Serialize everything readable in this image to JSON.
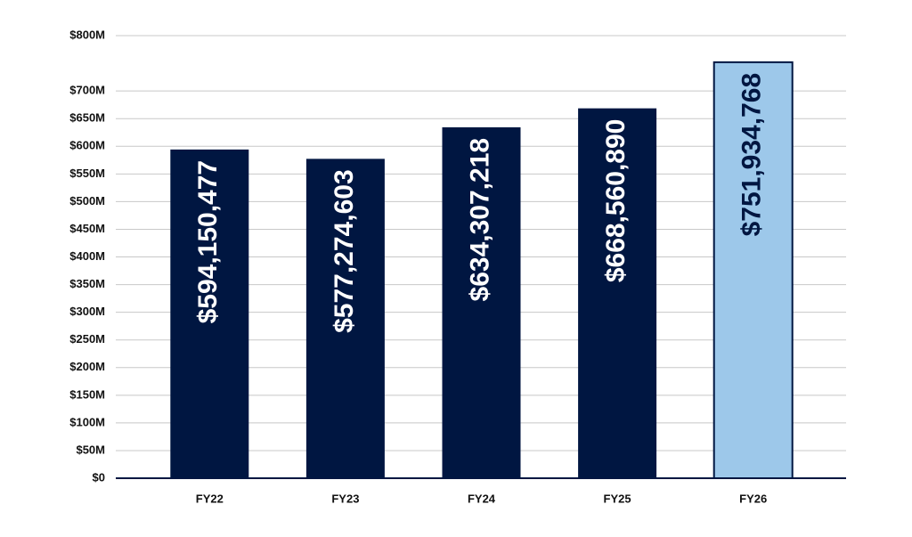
{
  "chart_data": {
    "type": "bar",
    "categories": [
      "FY22",
      "FY23",
      "FY24",
      "FY25",
      "FY26"
    ],
    "values": [
      594150477,
      577274603,
      634307218,
      668560890,
      751934768
    ],
    "value_labels": [
      "$594,150,477",
      "$577,274,603",
      "$634,307,218",
      "$668,560,890",
      "$751,934,768"
    ],
    "colors": [
      "#001641",
      "#001641",
      "#001641",
      "#001641",
      "#9dc8ea"
    ],
    "value_label_colors": [
      "#ffffff",
      "#ffffff",
      "#ffffff",
      "#ffffff",
      "#001641"
    ],
    "ylim": [
      0,
      800000000
    ],
    "yticks": [
      {
        "value": 0,
        "label": "$0"
      },
      {
        "value": 50000000,
        "label": "$50M"
      },
      {
        "value": 100000000,
        "label": "$100M"
      },
      {
        "value": 150000000,
        "label": "$150M"
      },
      {
        "value": 200000000,
        "label": "$200M"
      },
      {
        "value": 250000000,
        "label": "$250M"
      },
      {
        "value": 300000000,
        "label": "$300M"
      },
      {
        "value": 350000000,
        "label": "$350M"
      },
      {
        "value": 400000000,
        "label": "$400M"
      },
      {
        "value": 450000000,
        "label": "$450M"
      },
      {
        "value": 500000000,
        "label": "$500M"
      },
      {
        "value": 550000000,
        "label": "$550M"
      },
      {
        "value": 600000000,
        "label": "$600M"
      },
      {
        "value": 650000000,
        "label": "$650M"
      },
      {
        "value": 700000000,
        "label": "$700M"
      },
      {
        "value": 800000000,
        "label": "$800M"
      }
    ],
    "grid": true
  }
}
